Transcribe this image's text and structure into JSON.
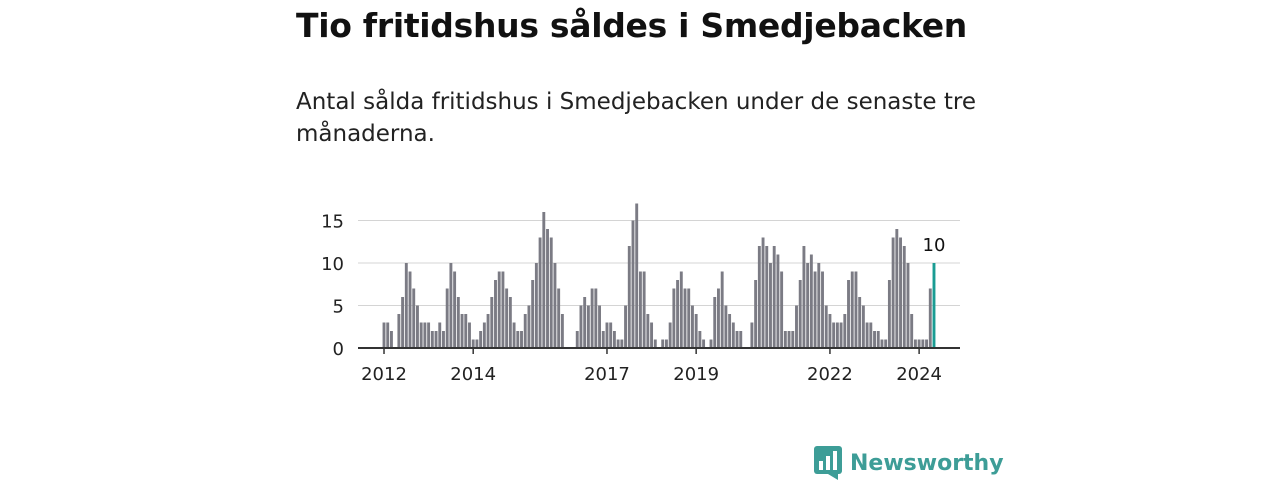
{
  "title": "Tio fritidshus såldes i Smedjebacken",
  "subtitle": "Antal sålda fritidshus i Smedjebacken under de senaste tre månaderna.",
  "brand": {
    "name": "Newsworthy",
    "icon": "newsworthy-logo-icon"
  },
  "colors": {
    "bar": "#7b7b84",
    "highlight": "#1a9c93",
    "axis": "#333333",
    "grid": "#d4d4d4"
  },
  "chart_data": {
    "type": "bar",
    "grid": true,
    "ylim": [
      0,
      18
    ],
    "yticks": [
      0,
      5,
      10,
      15
    ],
    "x_start": "2011-06",
    "x_end": "2024-12",
    "xticks": [
      {
        "label": "2012",
        "x": "2012-01"
      },
      {
        "label": "2014",
        "x": "2014-01"
      },
      {
        "label": "2017",
        "x": "2017-01"
      },
      {
        "label": "2019",
        "x": "2019-01"
      },
      {
        "label": "2022",
        "x": "2022-01"
      },
      {
        "label": "2024",
        "x": "2024-01"
      }
    ],
    "series": [
      {
        "start": "2012-01",
        "values": [
          3,
          3,
          2,
          0,
          4,
          6,
          10,
          9,
          7,
          5,
          3,
          3,
          3,
          2,
          2,
          3,
          2,
          7,
          10,
          9,
          6,
          4,
          4,
          3,
          1,
          1,
          2,
          3,
          4,
          6,
          8,
          9,
          9,
          7,
          6,
          3,
          2,
          2,
          4,
          5,
          8,
          10,
          13,
          16,
          14,
          13,
          10,
          7,
          4
        ]
      },
      {
        "start": "2016-05",
        "values": [
          2,
          5,
          6,
          5,
          7,
          7,
          5,
          2,
          3,
          3,
          2,
          1,
          1,
          5,
          12,
          15,
          17,
          9,
          9,
          4,
          3,
          1,
          0,
          1,
          1,
          3,
          7,
          8,
          9,
          7,
          7,
          5,
          4,
          2,
          1,
          0,
          1,
          6,
          7,
          9,
          5,
          4,
          3,
          2,
          2
        ]
      },
      {
        "start": "2020-04",
        "values": [
          3,
          8,
          12,
          13,
          12,
          10,
          12,
          11,
          9,
          2,
          2,
          2,
          5,
          8,
          12,
          10,
          11,
          9,
          10,
          9,
          5,
          4,
          3,
          3,
          3,
          4,
          8,
          9,
          9,
          6,
          5,
          3,
          3,
          2,
          2,
          1,
          1,
          8,
          13,
          14,
          13,
          12,
          10,
          4,
          1,
          1,
          1,
          1,
          7,
          10
        ]
      }
    ],
    "annotation": {
      "label": "10",
      "x": "2024-05",
      "value": 10
    }
  }
}
